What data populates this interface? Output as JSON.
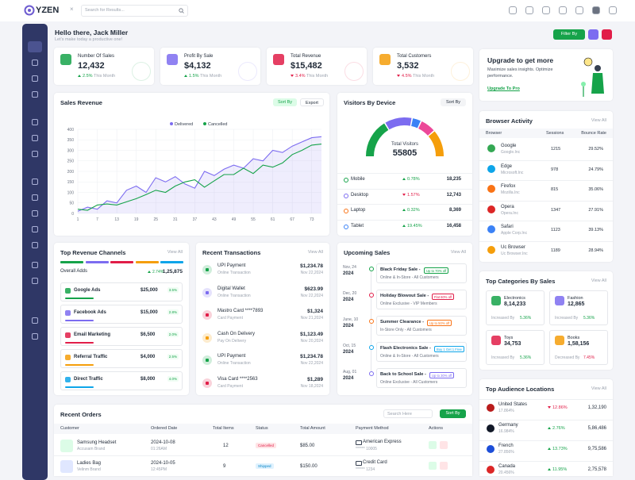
{
  "header": {
    "logo": "YZEN",
    "search_placeholder": "Search for Results..."
  },
  "greeting": {
    "title": "Hello there, Jack Miller",
    "subtitle": "Let's make today a productive one!",
    "filter": "Filter By"
  },
  "stats": [
    {
      "label": "Number Of Sales",
      "value": "12,432",
      "change": "2.5%",
      "period": "This Month",
      "trend": "up",
      "color": "#16a34a"
    },
    {
      "label": "Profit By Sale",
      "value": "$4,132",
      "change": "1.5%",
      "period": "This Month",
      "trend": "up",
      "color": "#7c6cf0"
    },
    {
      "label": "Total Revenue",
      "value": "$15,482",
      "change": "3.4%",
      "period": "This Month",
      "trend": "down",
      "color": "#e11d48"
    },
    {
      "label": "Total Customers",
      "value": "3,532",
      "change": "4.5%",
      "period": "This Month",
      "trend": "down",
      "color": "#f59e0b"
    }
  ],
  "upgrade": {
    "title": "Upgrade to get more",
    "text": "Maximize sales insights. Optimize performance.",
    "link": "Upgrade To Pro"
  },
  "sales_revenue": {
    "type": "line",
    "title": "Sales Revenue",
    "sort": "Sort By",
    "export": "Export",
    "x": [
      1,
      4,
      7,
      10,
      13,
      16,
      19,
      22,
      25,
      28,
      31,
      34,
      37,
      40,
      43,
      46,
      49,
      52,
      55,
      58,
      61,
      64,
      67,
      70,
      73,
      76
    ],
    "series": [
      {
        "name": "Delivered",
        "color": "#7c6cf0",
        "values": [
          10,
          30,
          20,
          60,
          50,
          110,
          130,
          100,
          170,
          150,
          175,
          140,
          120,
          200,
          180,
          210,
          230,
          215,
          260,
          250,
          300,
          290,
          320,
          340,
          360,
          365
        ]
      },
      {
        "name": "Cancelled",
        "color": "#16a34a",
        "values": [
          20,
          15,
          40,
          45,
          40,
          55,
          70,
          90,
          110,
          100,
          130,
          150,
          160,
          125,
          155,
          185,
          185,
          215,
          190,
          230,
          220,
          240,
          280,
          300,
          325,
          330
        ]
      }
    ],
    "xlim": [
      1,
      76
    ],
    "ylim": [
      0,
      400
    ],
    "xticks": [
      1,
      7,
      13,
      19,
      25,
      31,
      37,
      43,
      49,
      55,
      61,
      67,
      73
    ],
    "yticks": [
      0,
      50,
      100,
      150,
      200,
      250,
      300,
      350,
      400
    ],
    "grid": true
  },
  "visitors": {
    "title": "Visitors By Device",
    "sort": "Sort By",
    "total_label": "Total Visitors",
    "total": "55805",
    "devices": [
      {
        "name": "Mobile",
        "change": "0.78%",
        "value": "18,235",
        "trend": "up",
        "color": "#16a34a"
      },
      {
        "name": "Desktop",
        "change": "1.57%",
        "value": "12,743",
        "trend": "down",
        "color": "#7c6cf0"
      },
      {
        "name": "Laptop",
        "change": "0.32%",
        "value": "8,369",
        "trend": "up",
        "color": "#f97316"
      },
      {
        "name": "Tablet",
        "change": "19.45%",
        "value": "16,458",
        "trend": "up",
        "color": "#3b82f6"
      }
    ]
  },
  "browser_activity": {
    "title": "Browser Activity",
    "view_all": "View All",
    "headers": [
      "Browser",
      "Sessions",
      "Bounce Rate"
    ],
    "rows": [
      {
        "name": "Google",
        "company": "Google.Inc",
        "sessions": "1215",
        "bounce": "29.52%",
        "color": "#34a853"
      },
      {
        "name": "Edge",
        "company": "Microsoft.Inc",
        "sessions": "978",
        "bounce": "24.79%",
        "color": "#0ea5e9"
      },
      {
        "name": "Firefox",
        "company": "Mozilla.Inc",
        "sessions": "815",
        "bounce": "35.06%",
        "color": "#f97316"
      },
      {
        "name": "Opera",
        "company": "Opera.Inc",
        "sessions": "1347",
        "bounce": "27.91%",
        "color": "#dc2626"
      },
      {
        "name": "Safari",
        "company": "Apple Corp.Inc",
        "sessions": "1123",
        "bounce": "39.13%",
        "color": "#3b82f6"
      },
      {
        "name": "Uc Browser",
        "company": "Uc Browser.Inc",
        "sessions": "1189",
        "bounce": "28.94%",
        "color": "#f59e0b"
      }
    ]
  },
  "revenue_channels": {
    "title": "Top Revenue Channels",
    "view_all": "View All",
    "overall_label": "Overall Adds",
    "overall_change": "2.74%",
    "overall_value": "1,25,875",
    "channels": [
      {
        "name": "Google Ads",
        "value": "$25,000",
        "pct": "3.5%",
        "color": "#16a34a"
      },
      {
        "name": "Facebook Ads",
        "value": "$15,000",
        "pct": "2.8%",
        "color": "#7c6cf0"
      },
      {
        "name": "Email Marketing",
        "value": "$6,500",
        "pct": "2.0%",
        "color": "#e11d48"
      },
      {
        "name": "Referral Traffic",
        "value": "$4,000",
        "pct": "2.5%",
        "color": "#f59e0b"
      },
      {
        "name": "Direct Traffic",
        "value": "$8,000",
        "pct": "4.0%",
        "color": "#0ea5e9"
      }
    ]
  },
  "transactions": {
    "title": "Recent Transactions",
    "view_all": "View All",
    "rows": [
      {
        "name": "UPI Payment",
        "type": "Online Transaction",
        "amount": "$1,234.78",
        "date": "Nov 22,2024",
        "color": "#16a34a"
      },
      {
        "name": "Digital Wallet",
        "type": "Online Transaction",
        "amount": "$623.99",
        "date": "Nov 22,2024",
        "color": "#7c6cf0"
      },
      {
        "name": "Mastro Card ****7893",
        "type": "Card Payment",
        "amount": "$1,324",
        "date": "Nov 21,2024",
        "color": "#e11d48"
      },
      {
        "name": "Cash On Delivery",
        "type": "Pay On Delivery",
        "amount": "$1,123.49",
        "date": "Nov 20,2024",
        "color": "#f59e0b"
      },
      {
        "name": "UPI Payment",
        "type": "Online Transaction",
        "amount": "$1,234.78",
        "date": "Nov 22,2024",
        "color": "#16a34a"
      },
      {
        "name": "Visa Card ****2563",
        "type": "Card Payment",
        "amount": "$1,289",
        "date": "Nov 18,2024",
        "color": "#e11d48"
      }
    ]
  },
  "upcoming_sales": {
    "title": "Upcoming Sales",
    "view_all": "View All",
    "rows": [
      {
        "date": "Nov, 24",
        "year": "2024",
        "name": "Black Friday Sale -",
        "offer": "Up to 70% off",
        "audience": "Online & In-Store - All Customers",
        "color": "#16a34a"
      },
      {
        "date": "Dec, 20",
        "year": "2024",
        "name": "Holiday Blowout Sale -",
        "offer": "Flat 60% off",
        "audience": "Online Exclusive - VIP Members",
        "color": "#e11d48"
      },
      {
        "date": "June, 10",
        "year": "2024",
        "name": "Summer Clearance -",
        "offer": "Up to 50% off",
        "audience": "In-Store Only - All Customers",
        "color": "#f97316"
      },
      {
        "date": "Oct, 15",
        "year": "2024",
        "name": "Flash Electronics Sale -",
        "offer": "Buy 1 Get 1 Free",
        "audience": "Online & In-Store - All Customers",
        "color": "#0ea5e9"
      },
      {
        "date": "Aug, 01",
        "year": "2024",
        "name": "Back to School Sale -",
        "offer": "Up to 30% off",
        "audience": "Online Exclusive - All Customers",
        "color": "#7c6cf0"
      }
    ]
  },
  "top_categories": {
    "title": "Top Categories By Sales",
    "view_all": "View All",
    "items": [
      {
        "name": "Electronics",
        "value": "8,14,233",
        "change_label": "Increased By",
        "change": "5.36%",
        "color": "#16a34a"
      },
      {
        "name": "Fashion",
        "value": "12,865",
        "change_label": "Increased By",
        "change": "5.36%",
        "color": "#7c6cf0"
      },
      {
        "name": "Toys",
        "value": "34,753",
        "change_label": "Increased By",
        "change": "5.36%",
        "color": "#e11d48"
      },
      {
        "name": "Books",
        "value": "1,58,156",
        "change_label": "Decreased By",
        "change": "7.45%",
        "color": "#f59e0b"
      }
    ]
  },
  "recent_orders": {
    "title": "Recent Orders",
    "search": "Search Here",
    "sort": "Sort By",
    "headers": [
      "Customer",
      "Ordered Date",
      "Total Items",
      "Status",
      "Total Amount",
      "Payment Method",
      "Actions"
    ],
    "rows": [
      {
        "product": "Samsung Headset",
        "brand": "Accusam Brand",
        "date": "2024-10-08",
        "time": "01:26AM",
        "items": "12",
        "status": "Cancelled",
        "amount": "$85.00",
        "method": "American Express",
        "card": "****** 10005"
      },
      {
        "product": "Ladies Bag",
        "brand": "Velinm Brand",
        "date": "2024-10-05",
        "time": "12:45PM",
        "items": "9",
        "status": "Shipped",
        "amount": "$150.00",
        "method": "Credit Card",
        "card": "****** 1234"
      }
    ]
  },
  "audience_locations": {
    "title": "Top Audience Locations",
    "view_all": "View All",
    "rows": [
      {
        "country": "United States",
        "share": "17.864%",
        "change": "12.86%",
        "trend": "down",
        "value": "1,32,190",
        "color": "#b91c1c"
      },
      {
        "country": "Germany",
        "share": "16.984%",
        "change": "2.76%",
        "trend": "up",
        "value": "5,86,486",
        "color": "#111827"
      },
      {
        "country": "French",
        "share": "27.856%",
        "change": "13.73%",
        "trend": "up",
        "value": "9,75,586",
        "color": "#1d4ed8"
      },
      {
        "country": "Canada",
        "share": "20.456%",
        "change": "11.95%",
        "trend": "up",
        "value": "2,75,578",
        "color": "#dc2626"
      }
    ]
  }
}
